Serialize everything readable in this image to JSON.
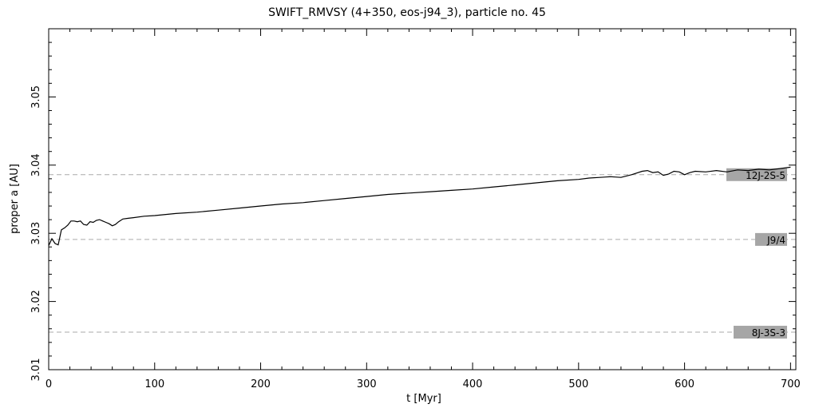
{
  "chart_data": {
    "type": "line",
    "title": "SWIFT_RMVSY (4+350, eos-j94_3), particle no. 45",
    "xlabel": "t [Myr]",
    "ylabel": "proper a [AU]",
    "xlim": [
      0,
      705
    ],
    "ylim": [
      3.01,
      3.06
    ],
    "x_ticks": [
      0,
      100,
      200,
      300,
      400,
      500,
      600,
      700
    ],
    "x_tick_labels": [
      "0",
      "100",
      "200",
      "300",
      "400",
      "500",
      "600",
      "700"
    ],
    "y_ticks": [
      3.01,
      3.02,
      3.03,
      3.04,
      3.05
    ],
    "y_tick_labels": [
      "3.01",
      "3.02",
      "3.03",
      "3.04",
      "3.05"
    ],
    "grid": false,
    "series": [
      {
        "x": [
          0,
          3,
          6,
          9,
          12,
          15,
          18,
          21,
          24,
          27,
          30,
          33,
          36,
          39,
          42,
          45,
          48,
          51,
          54,
          57,
          60,
          63,
          66,
          70,
          75,
          80,
          90,
          100,
          120,
          140,
          160,
          180,
          200,
          220,
          240,
          260,
          280,
          300,
          320,
          340,
          360,
          380,
          400,
          420,
          440,
          460,
          480,
          500,
          510,
          520,
          530,
          540,
          550,
          560,
          565,
          570,
          575,
          580,
          585,
          590,
          595,
          600,
          605,
          610,
          620,
          630,
          640,
          650,
          660,
          670,
          680,
          690,
          700
        ],
        "y": [
          3.0282,
          3.0292,
          3.0285,
          3.0283,
          3.0305,
          3.0308,
          3.0312,
          3.0318,
          3.0318,
          3.0317,
          3.0318,
          3.0313,
          3.0312,
          3.0317,
          3.0316,
          3.0319,
          3.032,
          3.0318,
          3.0316,
          3.0314,
          3.0311,
          3.0313,
          3.0317,
          3.0321,
          3.0322,
          3.0323,
          3.0325,
          3.0326,
          3.0329,
          3.0331,
          3.0334,
          3.0337,
          3.034,
          3.0343,
          3.0345,
          3.0348,
          3.0351,
          3.0354,
          3.0357,
          3.0359,
          3.0361,
          3.0363,
          3.0365,
          3.0368,
          3.0371,
          3.0374,
          3.0377,
          3.0379,
          3.0381,
          3.0382,
          3.0383,
          3.0382,
          3.0386,
          3.0391,
          3.0392,
          3.0389,
          3.039,
          3.0385,
          3.0387,
          3.0391,
          3.039,
          3.0386,
          3.0389,
          3.0391,
          3.039,
          3.0392,
          3.039,
          3.0393,
          3.0392,
          3.0394,
          3.0393,
          3.0395,
          3.0397
        ]
      }
    ],
    "resonances": [
      {
        "label": "12J-2S-5",
        "a": 3.0386
      },
      {
        "label": "J9/4",
        "a": 3.0291
      },
      {
        "label": "8J-3S-3",
        "a": 3.0155
      }
    ]
  }
}
